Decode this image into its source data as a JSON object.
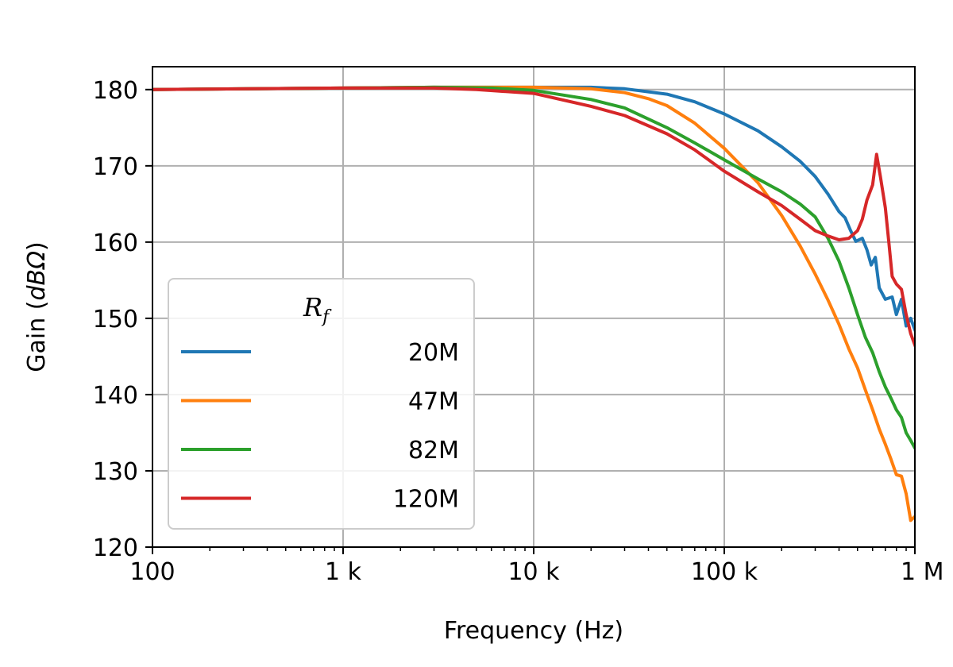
{
  "chart_data": {
    "type": "line",
    "xscale": "log",
    "xlim": [
      100,
      1000000
    ],
    "ylim": [
      120,
      183
    ],
    "xlabel": "Frequency (Hz)",
    "ylabel_prefix": "Gain (",
    "ylabel_unit": "dBΩ",
    "ylabel_suffix": ")",
    "grid": true,
    "legend_placement": "lower-left",
    "legend_title": "R",
    "legend_title_sub": "f",
    "x_ticks": [
      {
        "value": 100,
        "label": "100"
      },
      {
        "value": 1000,
        "label": "1 k"
      },
      {
        "value": 10000,
        "label": "10 k"
      },
      {
        "value": 100000,
        "label": "100 k"
      },
      {
        "value": 1000000,
        "label": "1 M"
      }
    ],
    "y_ticks": [
      {
        "value": 120,
        "label": "120"
      },
      {
        "value": 130,
        "label": "130"
      },
      {
        "value": 140,
        "label": "140"
      },
      {
        "value": 150,
        "label": "150"
      },
      {
        "value": 160,
        "label": "160"
      },
      {
        "value": 170,
        "label": "170"
      },
      {
        "value": 180,
        "label": "180"
      }
    ],
    "series": [
      {
        "name": "20M",
        "color": "#1f77b4",
        "points": [
          [
            100,
            180.0
          ],
          [
            1000,
            180.2
          ],
          [
            3000,
            180.3
          ],
          [
            10000,
            180.3
          ],
          [
            20000,
            180.3
          ],
          [
            30000,
            180.1
          ],
          [
            50000,
            179.4
          ],
          [
            70000,
            178.4
          ],
          [
            100000,
            176.8
          ],
          [
            150000,
            174.6
          ],
          [
            200000,
            172.5
          ],
          [
            250000,
            170.6
          ],
          [
            300000,
            168.6
          ],
          [
            350000,
            166.3
          ],
          [
            400000,
            164.0
          ],
          [
            430000,
            163.2
          ],
          [
            460000,
            161.5
          ],
          [
            490000,
            160.1
          ],
          [
            530000,
            160.5
          ],
          [
            560000,
            159.0
          ],
          [
            590000,
            157.0
          ],
          [
            620000,
            158.0
          ],
          [
            650000,
            154.0
          ],
          [
            700000,
            152.5
          ],
          [
            760000,
            152.8
          ],
          [
            800000,
            150.5
          ],
          [
            850000,
            152.5
          ],
          [
            900000,
            149.0
          ],
          [
            950000,
            150.0
          ],
          [
            1000000,
            148.5
          ]
        ]
      },
      {
        "name": "47M",
        "color": "#ff7f0e",
        "points": [
          [
            100,
            180.0
          ],
          [
            1000,
            180.2
          ],
          [
            3000,
            180.3
          ],
          [
            10000,
            180.3
          ],
          [
            20000,
            180.1
          ],
          [
            30000,
            179.6
          ],
          [
            40000,
            178.8
          ],
          [
            50000,
            177.9
          ],
          [
            70000,
            175.6
          ],
          [
            100000,
            172.3
          ],
          [
            150000,
            167.8
          ],
          [
            200000,
            163.5
          ],
          [
            250000,
            159.5
          ],
          [
            300000,
            155.8
          ],
          [
            350000,
            152.4
          ],
          [
            400000,
            149.2
          ],
          [
            450000,
            146.0
          ],
          [
            500000,
            143.5
          ],
          [
            550000,
            140.6
          ],
          [
            600000,
            138.0
          ],
          [
            650000,
            135.5
          ],
          [
            700000,
            133.5
          ],
          [
            750000,
            131.5
          ],
          [
            800000,
            129.5
          ],
          [
            850000,
            129.3
          ],
          [
            900000,
            127.0
          ],
          [
            950000,
            123.5
          ],
          [
            1000000,
            124.0
          ]
        ]
      },
      {
        "name": "82M",
        "color": "#2ca02c",
        "points": [
          [
            100,
            180.0
          ],
          [
            1000,
            180.2
          ],
          [
            3000,
            180.3
          ],
          [
            6000,
            180.2
          ],
          [
            10000,
            179.9
          ],
          [
            20000,
            178.7
          ],
          [
            30000,
            177.6
          ],
          [
            50000,
            175.0
          ],
          [
            70000,
            173.0
          ],
          [
            100000,
            170.8
          ],
          [
            150000,
            168.3
          ],
          [
            200000,
            166.6
          ],
          [
            250000,
            165.0
          ],
          [
            300000,
            163.3
          ],
          [
            350000,
            160.5
          ],
          [
            400000,
            157.5
          ],
          [
            450000,
            154.0
          ],
          [
            500000,
            150.5
          ],
          [
            550000,
            147.5
          ],
          [
            600000,
            145.5
          ],
          [
            650000,
            143.0
          ],
          [
            700000,
            141.0
          ],
          [
            750000,
            139.5
          ],
          [
            800000,
            138.0
          ],
          [
            850000,
            137.0
          ],
          [
            900000,
            135.0
          ],
          [
            950000,
            134.0
          ],
          [
            1000000,
            133.0
          ]
        ]
      },
      {
        "name": "120M",
        "color": "#d62728",
        "points": [
          [
            100,
            180.0
          ],
          [
            1000,
            180.2
          ],
          [
            3000,
            180.2
          ],
          [
            5000,
            180.0
          ],
          [
            10000,
            179.5
          ],
          [
            20000,
            177.8
          ],
          [
            30000,
            176.6
          ],
          [
            50000,
            174.2
          ],
          [
            70000,
            172.1
          ],
          [
            100000,
            169.3
          ],
          [
            150000,
            166.6
          ],
          [
            200000,
            164.8
          ],
          [
            250000,
            163.0
          ],
          [
            300000,
            161.5
          ],
          [
            350000,
            160.8
          ],
          [
            400000,
            160.3
          ],
          [
            450000,
            160.5
          ],
          [
            500000,
            161.5
          ],
          [
            530000,
            163.0
          ],
          [
            560000,
            165.5
          ],
          [
            600000,
            167.5
          ],
          [
            630000,
            171.5
          ],
          [
            660000,
            168.5
          ],
          [
            700000,
            164.5
          ],
          [
            730000,
            160.0
          ],
          [
            760000,
            155.5
          ],
          [
            800000,
            154.5
          ],
          [
            850000,
            153.8
          ],
          [
            900000,
            150.5
          ],
          [
            950000,
            148.0
          ],
          [
            1000000,
            146.5
          ]
        ]
      }
    ]
  }
}
